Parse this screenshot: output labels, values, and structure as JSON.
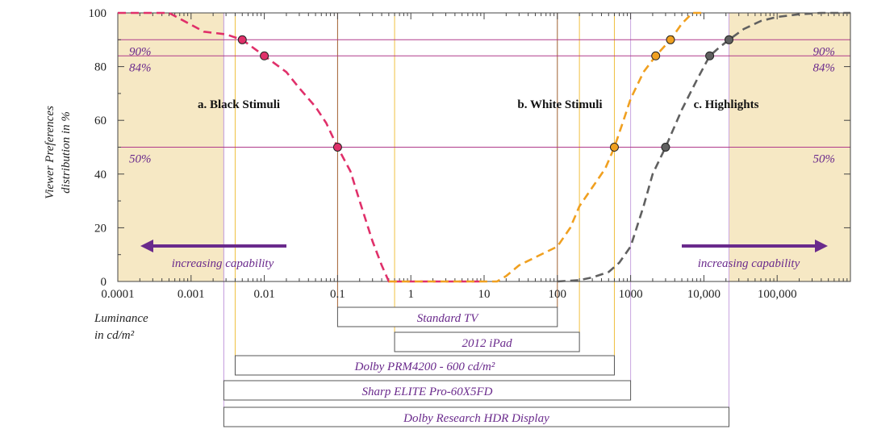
{
  "chart_data": {
    "type": "line",
    "xscale": "log",
    "xlim": [
      0.0001,
      1000000
    ],
    "ylim": [
      0,
      100
    ],
    "x_ticks": [
      {
        "value": 0.0001,
        "label": "0.0001"
      },
      {
        "value": 0.001,
        "label": "0.001"
      },
      {
        "value": 0.01,
        "label": "0.01"
      },
      {
        "value": 0.1,
        "label": "0.1"
      },
      {
        "value": 1,
        "label": "1"
      },
      {
        "value": 10,
        "label": "10"
      },
      {
        "value": 100,
        "label": "100"
      },
      {
        "value": 1000,
        "label": "1000"
      },
      {
        "value": 10000,
        "label": "10,000"
      },
      {
        "value": 100000,
        "label": "100,000"
      }
    ],
    "y_ticks": [
      0,
      20,
      40,
      60,
      80,
      100
    ],
    "xlabel": [
      "Luminance",
      "in cd/m²"
    ],
    "ylabel": [
      "Viewer Preferences",
      "distribution in %"
    ],
    "grid": false,
    "series": [
      {
        "name": "a. Black Stimuli",
        "color": "#e0306a",
        "x": [
          0.0001,
          0.0005,
          0.0015,
          0.003,
          0.005,
          0.01,
          0.02,
          0.03,
          0.05,
          0.07,
          0.1,
          0.15,
          0.2,
          0.3,
          0.4,
          0.5,
          0.7,
          1,
          3,
          10
        ],
        "values": [
          100,
          100,
          93,
          92,
          90,
          84,
          78,
          72,
          65,
          59,
          50,
          41,
          30,
          15,
          6,
          0,
          0,
          0,
          0,
          0
        ],
        "markers": [
          {
            "x": 0.005,
            "y": 90
          },
          {
            "x": 0.01,
            "y": 84
          },
          {
            "x": 0.1,
            "y": 50
          }
        ]
      },
      {
        "name": "b. White Stimuli",
        "color": "#f0a020",
        "x": [
          0.5,
          1,
          10,
          15,
          20,
          30,
          50,
          100,
          150,
          200,
          300,
          450,
          600,
          800,
          1000,
          1500,
          2200,
          3500,
          5000,
          7000,
          10000
        ],
        "values": [
          0,
          0,
          0,
          0,
          2,
          6,
          9,
          13,
          20,
          28,
          35,
          42,
          50,
          60,
          68,
          78,
          84,
          90,
          96,
          100,
          100
        ],
        "markers": [
          {
            "x": 600,
            "y": 50
          },
          {
            "x": 2200,
            "y": 84
          },
          {
            "x": 3500,
            "y": 90
          }
        ]
      },
      {
        "name": "c. Highlights",
        "color": "#606060",
        "x": [
          100,
          200,
          300,
          500,
          700,
          1000,
          1500,
          2000,
          3000,
          5000,
          8000,
          12000,
          16000,
          22000,
          35000,
          60000,
          100000,
          200000,
          400000,
          1000000
        ],
        "values": [
          0,
          0.5,
          1.5,
          3.5,
          7,
          13,
          28,
          40,
          50,
          64,
          75,
          84,
          87,
          90,
          94,
          97,
          98.5,
          99.5,
          100,
          100
        ],
        "markers": [
          {
            "x": 3000,
            "y": 50
          },
          {
            "x": 12000,
            "y": 84
          },
          {
            "x": 22000,
            "y": 90
          }
        ]
      }
    ],
    "hlines": [
      {
        "y": 90,
        "label": "90%"
      },
      {
        "y": 84,
        "label": "84%"
      },
      {
        "y": 50,
        "label": "50%"
      }
    ],
    "shaded_regions": [
      {
        "from": 0.0001,
        "to": 0.0028,
        "color": "#f6e8c4"
      },
      {
        "from": 22000,
        "to": 1000000,
        "color": "#f6e8c4"
      }
    ],
    "annotations": {
      "left_arrow_label": "increasing capability",
      "right_arrow_label": "increasing capability",
      "arrow_color": "#6a2a8c"
    },
    "displays": [
      {
        "name": "Standard TV",
        "min": 0.1,
        "max": 100,
        "line_color": "#a06030"
      },
      {
        "name": "2012 iPad",
        "min": 0.6,
        "max": 200,
        "line_color": "#f0c040"
      },
      {
        "name": "Dolby PRM4200 - 600 cd/m²",
        "min": 0.004,
        "max": 600,
        "line_color": "#f0c040"
      },
      {
        "name": "Sharp ELITE Pro-60X5FD",
        "min": 0.0028,
        "max": 1000,
        "line_color": "#c9a6e0"
      },
      {
        "name": "Dolby Research HDR Display",
        "min": 0.0028,
        "max": 22000,
        "line_color": "#c9a6e0"
      }
    ]
  }
}
